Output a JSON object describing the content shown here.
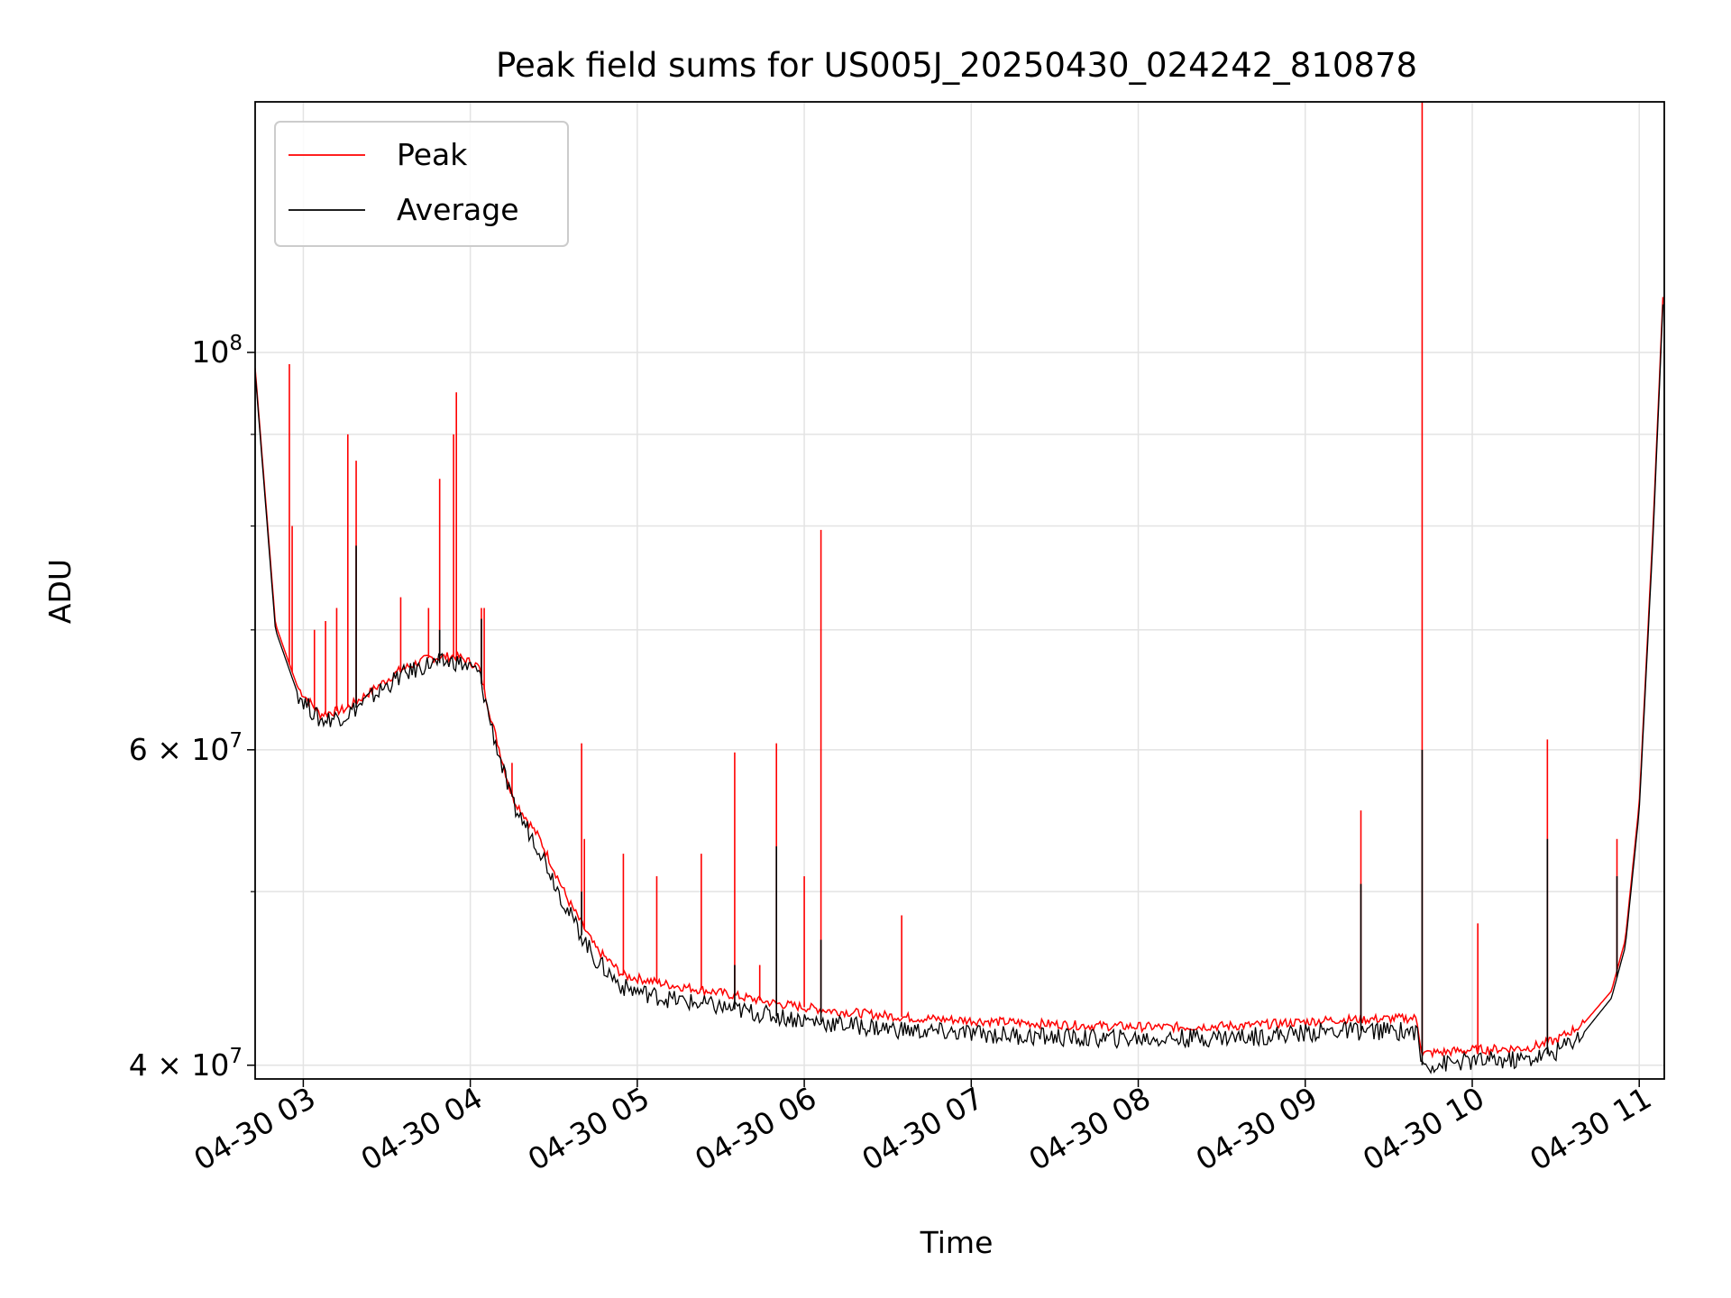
{
  "chart_data": {
    "type": "line",
    "title": "Peak field sums for US005J_20250430_024242_810878",
    "xlabel": "Time",
    "ylabel": "ADU",
    "yscale": "log",
    "ylim": [
      39300000,
      138000000
    ],
    "xlim": [
      "04-30 02:42:42",
      "04-30 11:09:00"
    ],
    "grid": true,
    "legend_position": "top-left",
    "x_ticks": [
      "04-30 03",
      "04-30 04",
      "04-30 05",
      "04-30 06",
      "04-30 07",
      "04-30 08",
      "04-30 09",
      "04-30 10",
      "04-30 11"
    ],
    "y_ticks": [
      {
        "label": "10",
        "exp": "8",
        "value": 100000000
      },
      {
        "label": "6 × 10",
        "exp": "7",
        "value": 60000000
      },
      {
        "label": "4 × 10",
        "exp": "7",
        "value": 40000000
      }
    ],
    "y_minor_ticks": [
      50000000,
      70000000,
      80000000,
      90000000
    ],
    "series": [
      {
        "name": "Peak",
        "color": "#ff0000",
        "x": [
          "04-30 02:42:42",
          "04-30 02:50",
          "04-30 02:58",
          "04-30 03:06",
          "04-30 03:15",
          "04-30 03:25",
          "04-30 03:35",
          "04-30 03:45",
          "04-30 03:55",
          "04-30 04:03",
          "04-30 04:08",
          "04-30 04:15",
          "04-30 04:25",
          "04-30 04:35",
          "04-30 04:45",
          "04-30 04:55",
          "04-30 05:10",
          "04-30 05:30",
          "04-30 05:50",
          "04-30 06:10",
          "04-30 06:40",
          "04-30 07:10",
          "04-30 07:40",
          "04-30 08:10",
          "04-30 08:40",
          "04-30 09:10",
          "04-30 09:40",
          "04-30 09:42",
          "04-30 10:00",
          "04-30 10:20",
          "04-30 10:30",
          "04-30 10:40",
          "04-30 10:50",
          "04-30 10:55",
          "04-30 11:00",
          "04-30 11:05",
          "04-30 11:09"
        ],
        "y": [
          98000000,
          70500000,
          65000000,
          62800000,
          63200000,
          64800000,
          66500000,
          67500000,
          67700000,
          66800000,
          62000000,
          56500000,
          53500000,
          49500000,
          46500000,
          44900000,
          44400000,
          43900000,
          43300000,
          42900000,
          42500000,
          42300000,
          42100000,
          42000000,
          42100000,
          42400000,
          42500000,
          40600000,
          40800000,
          40900000,
          41300000,
          42200000,
          44000000,
          47000000,
          56000000,
          80000000,
          112000000
        ],
        "spikes": [
          [
            "04-30 02:55",
            98500000
          ],
          [
            "04-30 02:56",
            80000000
          ],
          [
            "04-30 03:04",
            70000000
          ],
          [
            "04-30 03:08",
            70800000
          ],
          [
            "04-30 03:12",
            72000000
          ],
          [
            "04-30 03:16",
            90000000
          ],
          [
            "04-30 03:19",
            87000000
          ],
          [
            "04-30 03:35",
            73000000
          ],
          [
            "04-30 03:45",
            72000000
          ],
          [
            "04-30 03:49",
            85000000
          ],
          [
            "04-30 03:54",
            90000000
          ],
          [
            "04-30 03:55",
            95000000
          ],
          [
            "04-30 04:04",
            72000000
          ],
          [
            "04-30 04:05",
            72000000
          ],
          [
            "04-30 04:15",
            59000000
          ],
          [
            "04-30 04:40",
            60500000
          ],
          [
            "04-30 04:41",
            53500000
          ],
          [
            "04-30 04:55",
            52500000
          ],
          [
            "04-30 05:07",
            51000000
          ],
          [
            "04-30 05:23",
            52500000
          ],
          [
            "04-30 05:35",
            59800000
          ],
          [
            "04-30 05:44",
            45500000
          ],
          [
            "04-30 05:50",
            60500000
          ],
          [
            "04-30 06:00",
            51000000
          ],
          [
            "04-30 06:06",
            79600000
          ],
          [
            "04-30 06:35",
            48500000
          ],
          [
            "04-30 09:20",
            55500000
          ],
          [
            "04-30 09:42",
            138000000
          ],
          [
            "04-30 10:02",
            48000000
          ],
          [
            "04-30 10:27",
            60800000
          ],
          [
            "04-30 10:52",
            53500000
          ]
        ]
      },
      {
        "name": "Average",
        "color": "#000000",
        "x": [
          "04-30 02:42:42",
          "04-30 02:50",
          "04-30 02:58",
          "04-30 03:06",
          "04-30 03:15",
          "04-30 03:25",
          "04-30 03:35",
          "04-30 03:45",
          "04-30 03:55",
          "04-30 04:03",
          "04-30 04:08",
          "04-30 04:15",
          "04-30 04:25",
          "04-30 04:35",
          "04-30 04:45",
          "04-30 04:55",
          "04-30 05:10",
          "04-30 05:30",
          "04-30 05:50",
          "04-30 06:10",
          "04-30 06:40",
          "04-30 07:10",
          "04-30 07:40",
          "04-30 08:10",
          "04-30 08:40",
          "04-30 09:10",
          "04-30 09:40",
          "04-30 09:42",
          "04-30 10:00",
          "04-30 10:20",
          "04-30 10:30",
          "04-30 10:40",
          "04-30 10:50",
          "04-30 10:55",
          "04-30 11:00",
          "04-30 11:05",
          "04-30 11:09"
        ],
        "y": [
          97500000,
          70000000,
          64500000,
          62300000,
          62700000,
          64300000,
          66000000,
          67000000,
          67200000,
          66300000,
          61500000,
          56000000,
          52800000,
          48800000,
          45800000,
          44200000,
          43600000,
          43100000,
          42600000,
          42200000,
          41800000,
          41600000,
          41400000,
          41400000,
          41500000,
          41800000,
          41800000,
          40000000,
          40200000,
          40300000,
          40700000,
          41700000,
          43600000,
          46600000,
          55500000,
          79000000,
          111000000
        ],
        "spikes": [
          [
            "04-30 03:19",
            78000000
          ],
          [
            "04-30 03:49",
            70000000
          ],
          [
            "04-30 04:04",
            71000000
          ],
          [
            "04-30 04:40",
            50000000
          ],
          [
            "04-30 05:35",
            45500000
          ],
          [
            "04-30 05:50",
            53000000
          ],
          [
            "04-30 06:06",
            47000000
          ],
          [
            "04-30 09:20",
            50500000
          ],
          [
            "04-30 09:42",
            60000000
          ],
          [
            "04-30 10:27",
            53500000
          ],
          [
            "04-30 10:52",
            51000000
          ]
        ]
      }
    ]
  }
}
